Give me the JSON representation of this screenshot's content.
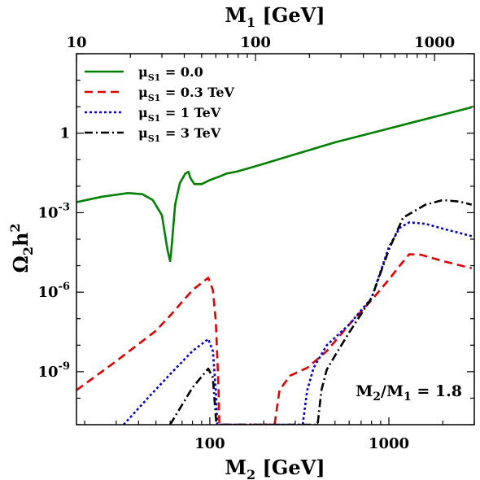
{
  "chart_data": {
    "type": "line",
    "title": "",
    "xlabel": "M",
    "xlabel_sub": "2",
    "xlabel_unit": " [GeV]",
    "top_xlabel": "M",
    "top_xlabel_sub": "1",
    "top_xlabel_unit": " [GeV]",
    "ylabel": "Ω",
    "ylabel_sub": "2",
    "ylabel_rest": "h",
    "ylabel_sup": "2",
    "xscale": "log",
    "yscale": "log",
    "xlim": [
      18,
      3000
    ],
    "ylim": [
      1e-11,
      1000
    ],
    "top_axis_ratio": 1.8,
    "xticks": [
      {
        "value": 100,
        "label": "100"
      },
      {
        "value": 1000,
        "label": "1000"
      }
    ],
    "top_xticks": [
      {
        "value": 10,
        "label": "10"
      },
      {
        "value": 100,
        "label": "100"
      },
      {
        "value": 1000,
        "label": "1000"
      }
    ],
    "yticks": [
      {
        "value": 1e-09,
        "base": "10",
        "exp": "-9"
      },
      {
        "value": 1e-06,
        "base": "10",
        "exp": "-6"
      },
      {
        "value": 0.001,
        "base": "10",
        "exp": "-3"
      },
      {
        "value": 1,
        "base": "1",
        "exp": ""
      }
    ],
    "grid": false,
    "legend_position": "top-left",
    "annotation": {
      "text_main": "M",
      "sub1": "2",
      "mid": "/M",
      "sub2": "1",
      "tail": " = 1.8"
    },
    "series": [
      {
        "name": "μ",
        "name_sub": "S1",
        "name_value": " = 0.0",
        "color": "#008000",
        "dash": "solid",
        "points": [
          [
            18,
            0.0025
          ],
          [
            25,
            0.004
          ],
          [
            35,
            0.0055
          ],
          [
            42,
            0.005
          ],
          [
            48,
            0.003
          ],
          [
            54,
            0.0008
          ],
          [
            58,
            4e-05
          ],
          [
            60,
            1.5e-05
          ],
          [
            61,
            4e-05
          ],
          [
            64,
            0.002
          ],
          [
            68,
            0.013
          ],
          [
            73,
            0.03
          ],
          [
            76,
            0.035
          ],
          [
            78,
            0.02
          ],
          [
            82,
            0.012
          ],
          [
            90,
            0.012
          ],
          [
            100,
            0.017
          ],
          [
            113,
            0.023
          ],
          [
            124,
            0.03
          ],
          [
            140,
            0.035
          ],
          [
            160,
            0.045
          ],
          [
            200,
            0.07
          ],
          [
            300,
            0.16
          ],
          [
            500,
            0.45
          ],
          [
            1000,
            1.5
          ],
          [
            2000,
            5
          ],
          [
            2900,
            9.5
          ]
        ]
      },
      {
        "name": "μ",
        "name_sub": "S1",
        "name_value": " = 0.3 TeV",
        "color": "#e00000",
        "dash": "dash",
        "points": [
          [
            18,
            2e-10
          ],
          [
            30,
            2.5e-09
          ],
          [
            50,
            3.5e-08
          ],
          [
            60,
            1.3e-07
          ],
          [
            80,
            1.2e-06
          ],
          [
            98,
            3.5e-06
          ],
          [
            104,
            1.2e-06
          ],
          [
            108,
            8e-08
          ],
          [
            112,
            2e-10
          ],
          [
            113,
            1e-11
          ],
          [
            230,
            1e-11
          ],
          [
            245,
            2e-10
          ],
          [
            280,
            7e-10
          ],
          [
            350,
            1.4e-09
          ],
          [
            450,
            6e-09
          ],
          [
            600,
            6e-08
          ],
          [
            800,
            5e-07
          ],
          [
            1000,
            3e-06
          ],
          [
            1150,
            1e-05
          ],
          [
            1300,
            2.7e-05
          ],
          [
            1500,
            2.6e-05
          ],
          [
            2000,
            1.5e-05
          ],
          [
            2900,
            8e-06
          ]
        ]
      },
      {
        "name": "μ",
        "name_sub": "S1",
        "name_value": " = 1 TeV",
        "color": "#0000d0",
        "dash": "dot",
        "points": [
          [
            33,
            1e-11
          ],
          [
            45,
            1e-10
          ],
          [
            60,
            8e-10
          ],
          [
            80,
            6e-09
          ],
          [
            98,
            1.7e-08
          ],
          [
            104,
            6e-09
          ],
          [
            108,
            2e-10
          ],
          [
            110,
            1e-11
          ],
          [
            330,
            1e-11
          ],
          [
            350,
            2e-10
          ],
          [
            380,
            1.4e-09
          ],
          [
            450,
            1e-08
          ],
          [
            600,
            6e-08
          ],
          [
            800,
            6e-07
          ],
          [
            1000,
            5e-05
          ],
          [
            1150,
            0.00027
          ],
          [
            1300,
            0.00043
          ],
          [
            1600,
            0.00038
          ],
          [
            2000,
            0.00025
          ],
          [
            2900,
            0.00013
          ]
        ]
      },
      {
        "name": "μ",
        "name_sub": "S1",
        "name_value": " = 3 TeV",
        "color": "#000000",
        "dash": "dashdot",
        "points": [
          [
            60,
            1e-11
          ],
          [
            80,
            2.5e-10
          ],
          [
            98,
            1.3e-09
          ],
          [
            104,
            6e-10
          ],
          [
            108,
            2e-11
          ],
          [
            109,
            1e-11
          ],
          [
            400,
            1e-11
          ],
          [
            420,
            2e-10
          ],
          [
            450,
            1.2e-09
          ],
          [
            500,
            4e-09
          ],
          [
            600,
            3e-08
          ],
          [
            800,
            6e-07
          ],
          [
            1000,
            4e-05
          ],
          [
            1200,
            0.00065
          ],
          [
            1600,
            0.002
          ],
          [
            2000,
            0.003
          ],
          [
            2500,
            0.0026
          ],
          [
            2900,
            0.002
          ]
        ]
      }
    ]
  }
}
